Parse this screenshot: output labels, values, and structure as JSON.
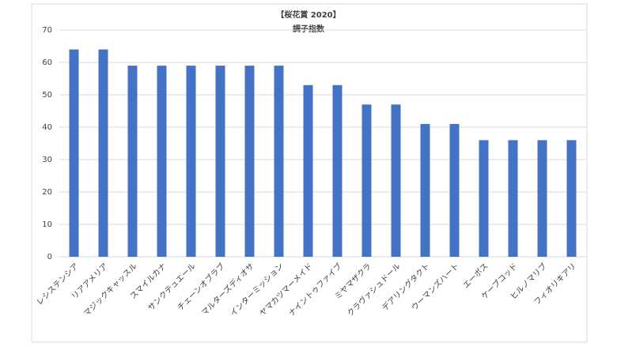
{
  "chart_data": {
    "type": "bar",
    "title": "【桜花賞 2020】",
    "subtitle": "調子指数",
    "categories": [
      "レシステンシア",
      "リアアメリア",
      "マジックキャッスル",
      "スマイルカナ",
      "サンクテュエール",
      "チェーンオブラブ",
      "マルターズディオサ",
      "インターミッション",
      "ヤマカツマーメイド",
      "ナイントゥファイブ",
      "ミヤマザクラ",
      "クラヴァシュドール",
      "デアリングタクト",
      "ウーマンズハート",
      "エーポス",
      "ケープコッド",
      "ヒルノマリブ",
      "フィオリキアリ"
    ],
    "values": [
      64,
      64,
      59,
      59,
      59,
      59,
      59,
      59,
      53,
      53,
      47,
      47,
      41,
      41,
      36,
      36,
      36,
      36
    ],
    "color": "#4472c4",
    "ylim": [
      0,
      70
    ],
    "yticks": [
      0,
      10,
      20,
      30,
      40,
      50,
      60,
      70
    ],
    "grid": true
  }
}
